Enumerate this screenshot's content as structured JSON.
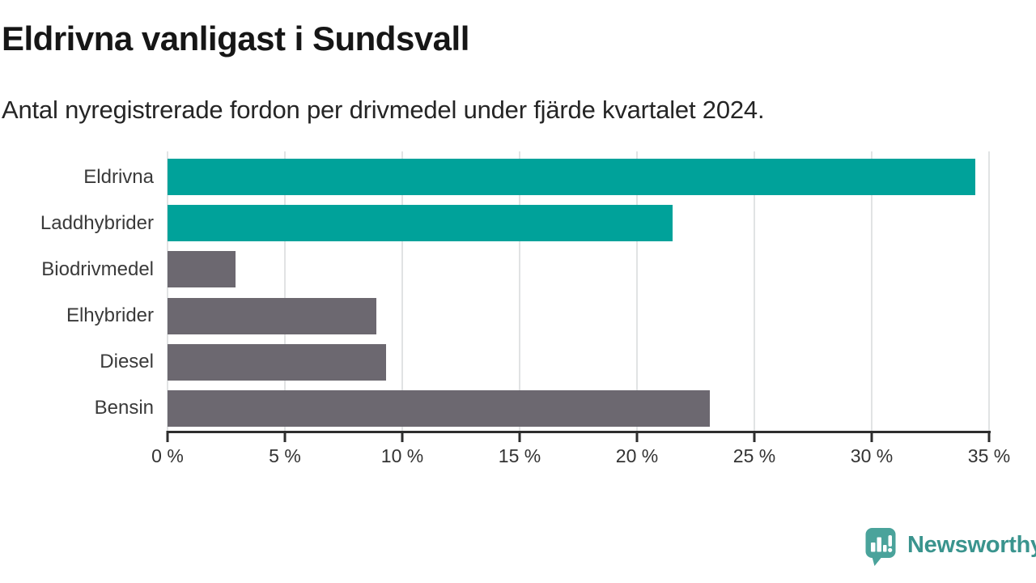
{
  "header": {
    "title": "Eldrivna vanligast i Sundsvall",
    "subtitle": "Antal nyregistrerade fordon per drivmedel under fjärde kvartalet 2024."
  },
  "chart_data": {
    "type": "bar",
    "orientation": "horizontal",
    "title": "Eldrivna vanligast i Sundsvall",
    "subtitle": "Antal nyregistrerade fordon per drivmedel under fjärde kvartalet 2024.",
    "categories": [
      "Eldrivna",
      "Laddhybrider",
      "Biodrivmedel",
      "Elhybrider",
      "Diesel",
      "Bensin"
    ],
    "values": [
      34.4,
      21.5,
      2.9,
      8.9,
      9.3,
      23.1
    ],
    "unit": "%",
    "bar_colors": [
      "#00a29a",
      "#00a29a",
      "#6c6870",
      "#6c6870",
      "#6c6870",
      "#6c6870"
    ],
    "xlim": [
      0,
      35
    ],
    "tick_step": 5,
    "x_tick_labels": [
      "0 %",
      "5 %",
      "10 %",
      "15 %",
      "20 %",
      "25 %",
      "30 %",
      "35 %"
    ],
    "grid": "vertical-light",
    "legend": "none",
    "colors": {
      "highlight": "#00a29a",
      "neutral": "#6c6870",
      "gridline": "#e1e3e4",
      "axis": "#2e2e2e"
    }
  },
  "footer": {
    "brand": "Newsworthy",
    "logo_icon": "newsworthy-speech-bubble-chart-icon",
    "brand_color": "#3a948e",
    "icon_color": "#4aa39b"
  }
}
